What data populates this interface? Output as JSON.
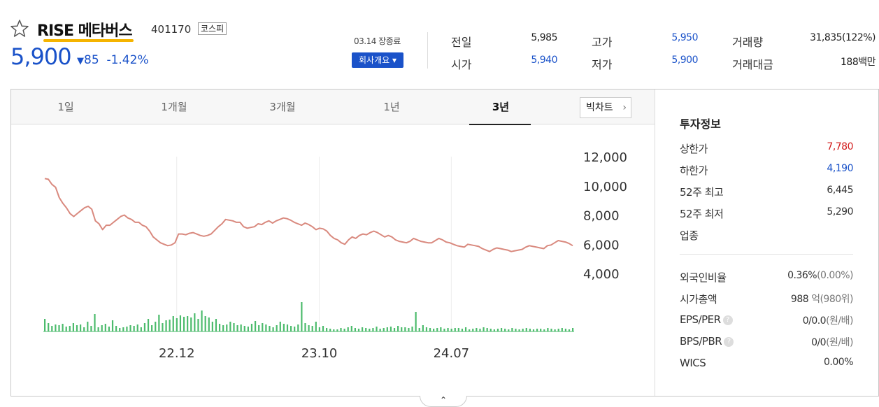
{
  "header": {
    "name": "RISE 메타버스",
    "code": "401170",
    "market": "코스피",
    "price": "5,900",
    "change_arrow": "▼",
    "change_value": "85",
    "change_rate": "-1.42%",
    "date_status": "03.14 장종료",
    "company_button": "회사개요 ▾"
  },
  "stats": {
    "prev_label": "전일",
    "prev_value": "5,985",
    "high_label": "고가",
    "high_value": "5,950",
    "volume_label": "거래량",
    "volume_value": "31,835(122%)",
    "open_label": "시가",
    "open_value": "5,940",
    "low_label": "저가",
    "low_value": "5,900",
    "amount_label": "거래대금",
    "amount_value": "188백만"
  },
  "tabs": [
    "1일",
    "1개월",
    "3개월",
    "1년",
    "3년"
  ],
  "active_tab": 4,
  "bigchart_label": "빅차트",
  "bigchart_chevron": "›",
  "fold_icon": "⌃",
  "invest": {
    "title": "투자정보",
    "upper_label": "상한가",
    "upper_value": "7,780",
    "lower_label": "하한가",
    "lower_value": "4,190",
    "high52_label": "52주 최고",
    "high52_value": "6,445",
    "low52_label": "52주 최저",
    "low52_value": "5,290",
    "industry_label": "업종",
    "foreign_label": "외국인비율",
    "foreign_value": "0.36%",
    "foreign_sub": "(0.00%)",
    "mcap_label": "시가총액",
    "mcap_value": "988",
    "mcap_sub": "억(980위)",
    "eps_label": "EPS/PER",
    "eps_value": "0/0.0",
    "eps_unit": "(원/배)",
    "bps_label": "BPS/PBR",
    "bps_value": "0/0",
    "bps_unit": "(원/배)",
    "wics_label": "WICS",
    "wics_value": "0.00%",
    "help_icon": "?"
  },
  "chart_data": {
    "type": "line",
    "line_color": "#d9897e",
    "volume_color": "#4cbb6c",
    "ylim": [
      4000,
      12000
    ],
    "y_ticks": [
      "12,000",
      "10,000",
      "8,000",
      "6,000",
      "4,000"
    ],
    "y_tick_values": [
      12000,
      10000,
      8000,
      6000,
      4000
    ],
    "x_ticks": [
      "22.12",
      "23.10",
      "24.07"
    ],
    "x_tick_positions": [
      0.25,
      0.52,
      0.77
    ],
    "grid": "vertical",
    "price": [
      10500,
      10450,
      10100,
      9900,
      9200,
      8800,
      8500,
      8100,
      7900,
      8100,
      8300,
      8500,
      8600,
      8400,
      7600,
      7400,
      7000,
      7300,
      7300,
      7500,
      7700,
      7900,
      8000,
      7800,
      7700,
      7500,
      7500,
      7300,
      7200,
      6900,
      6500,
      6300,
      6100,
      6000,
      5900,
      5950,
      6100,
      6700,
      6700,
      6650,
      6750,
      6800,
      6700,
      6600,
      6550,
      6600,
      6700,
      6950,
      7200,
      7400,
      7700,
      7650,
      7600,
      7500,
      7500,
      7200,
      7100,
      7150,
      7200,
      7400,
      7350,
      7500,
      7600,
      7450,
      7600,
      7700,
      7800,
      7750,
      7650,
      7500,
      7400,
      7300,
      7450,
      7350,
      7200,
      7000,
      7100,
      7050,
      6900,
      6600,
      6400,
      6300,
      6100,
      6000,
      6300,
      6500,
      6400,
      6600,
      6700,
      6650,
      6800,
      6900,
      6800,
      6650,
      6500,
      6600,
      6500,
      6300,
      6200,
      6150,
      6100,
      6200,
      6400,
      6300,
      6200,
      6150,
      6100,
      6100,
      6250,
      6400,
      6300,
      6150,
      6100,
      6000,
      5900,
      5850,
      5800,
      6000,
      5950,
      5900,
      5850,
      5700,
      5600,
      5500,
      5650,
      5750,
      5700,
      5650,
      5600,
      5500,
      5550,
      5600,
      5650,
      5800,
      5900,
      5850,
      5800,
      5750,
      5700,
      5900,
      5950,
      6100,
      6250,
      6200,
      6150,
      6050,
      5900
    ],
    "volume": [
      18,
      12,
      8,
      10,
      9,
      11,
      7,
      8,
      12,
      9,
      10,
      6,
      14,
      8,
      25,
      6,
      9,
      11,
      7,
      16,
      8,
      5,
      6,
      7,
      9,
      8,
      10,
      6,
      12,
      18,
      9,
      14,
      24,
      12,
      16,
      17,
      22,
      19,
      23,
      21,
      22,
      20,
      26,
      18,
      30,
      22,
      20,
      14,
      18,
      11,
      9,
      10,
      14,
      12,
      9,
      10,
      8,
      7,
      11,
      15,
      9,
      12,
      10,
      8,
      6,
      9,
      14,
      11,
      10,
      8,
      7,
      10,
      42,
      12,
      9,
      8,
      14,
      6,
      8,
      5,
      4,
      3,
      3,
      5,
      4,
      6,
      8,
      5,
      4,
      6,
      5,
      4,
      5,
      7,
      4,
      5,
      6,
      7,
      5,
      8,
      6,
      6,
      5,
      7,
      28,
      5,
      9,
      6,
      5,
      4,
      5,
      6,
      4,
      5,
      4,
      5,
      5,
      4,
      6,
      3,
      4,
      5,
      4,
      6,
      5,
      4,
      3,
      4,
      5,
      4,
      3,
      5,
      4,
      3,
      4,
      5,
      4,
      3,
      4,
      4,
      3,
      5,
      4,
      3,
      4,
      5,
      4,
      3,
      5
    ]
  }
}
